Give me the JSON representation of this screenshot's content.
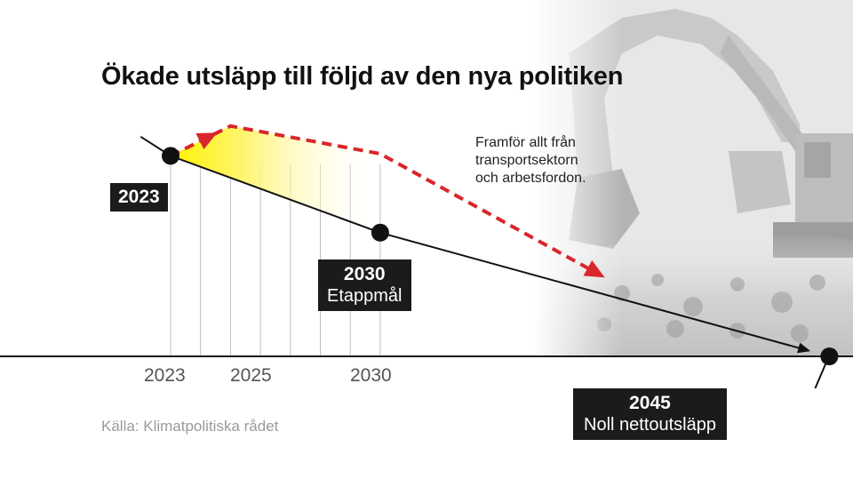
{
  "title": "Ökade utsläpp till följd av den nya politiken",
  "note_lines": [
    "Framför allt från",
    "transportsektorn",
    "och arbetsfordon."
  ],
  "source": "Källa: Klimatpolitiska rådet",
  "labels": {
    "start": {
      "year": "2023",
      "text": ""
    },
    "mid": {
      "year": "2030",
      "text": "Etappmål"
    },
    "end": {
      "year": "2045",
      "text": "Noll nettoutsläpp"
    }
  },
  "colors": {
    "target_line": "#111111",
    "actual_line": "#d9262b",
    "gap_fill_start": "#fff200",
    "gap_fill_end": "#ffffff",
    "label_box": "#1b1b1b",
    "background_photo": "#d8d8d8"
  },
  "chart_data": {
    "type": "line",
    "title": "Ökade utsläpp till följd av den nya politiken",
    "xlabel": "",
    "ylabel": "",
    "x_ticks": [
      2023,
      2025,
      2030
    ],
    "x_gridlines": [
      2023,
      2024,
      2025,
      2026,
      2027,
      2028,
      2029,
      2030
    ],
    "xlim": [
      2022,
      2046
    ],
    "ylim": [
      0,
      1.05
    ],
    "grid": true,
    "series": [
      {
        "style": "solid",
        "x": [
          2022,
          2023,
          2030,
          2045
        ],
        "y": [
          1.03,
          0.94,
          0.58,
          0.0
        ]
      },
      {
        "style": "dashed-arrow",
        "x": [
          2023,
          2025,
          2030,
          2037.5
        ],
        "y": [
          0.94,
          1.08,
          0.95,
          0.37
        ]
      }
    ],
    "milestones": [
      {
        "x": 2023,
        "y": 0.94,
        "label": "2023"
      },
      {
        "x": 2030,
        "y": 0.58,
        "label": "2030",
        "note": "Etappmål"
      },
      {
        "x": 2045,
        "y": 0.0,
        "label": "2045",
        "note": "Noll nettoutsläpp"
      }
    ],
    "annotation": "Framför allt från transportsektorn och arbetsfordon."
  }
}
